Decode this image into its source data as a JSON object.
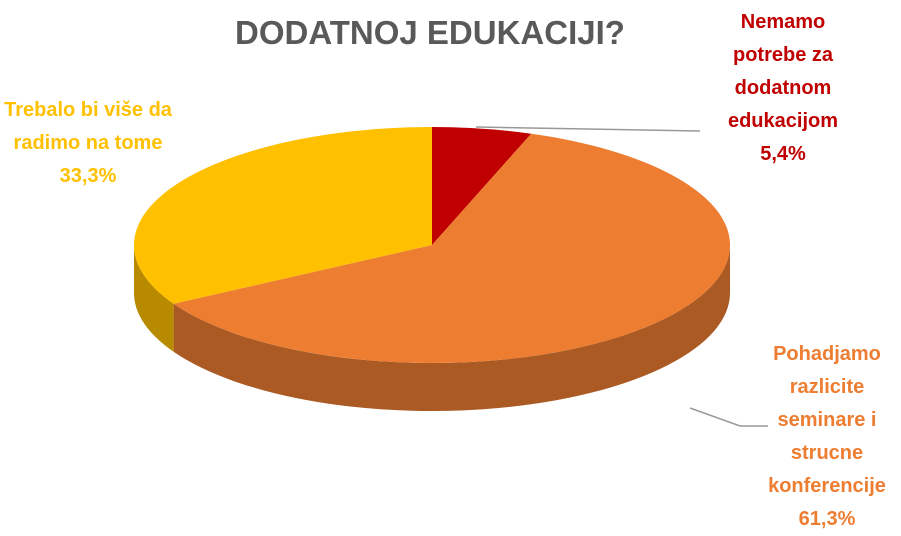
{
  "chart_data": {
    "type": "pie",
    "title": "DODATNOJ EDUKACIJI?",
    "categories": [
      "Nemamo potrebe za dodatnom edukacijom",
      "Pohadjamo razlicite seminare i strucne konferencije",
      "Trebalo bi više da radimo na tome"
    ],
    "values": [
      5.4,
      61.3,
      33.3
    ],
    "value_labels": [
      "5,4%",
      "61,3%",
      "33,3%"
    ],
    "colors": [
      "#c00000",
      "#ed7d31",
      "#ffc000"
    ]
  }
}
